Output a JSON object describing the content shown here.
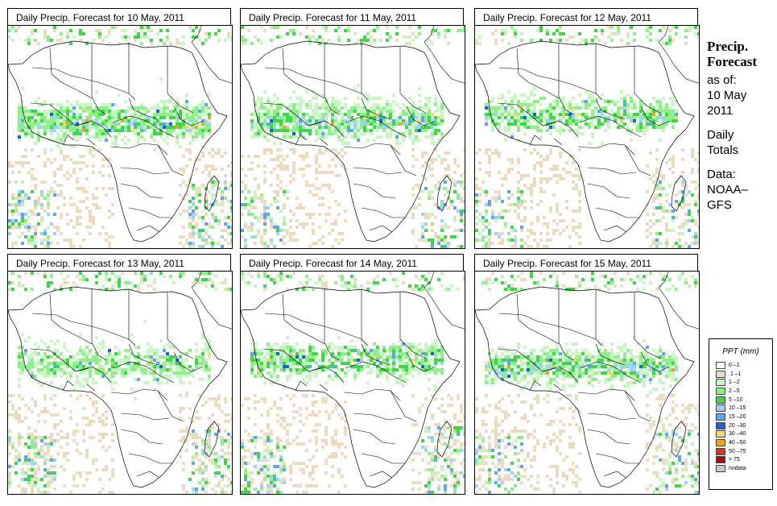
{
  "panels": [
    {
      "title": "Daily Precip. Forecast for  10 May, 2011",
      "day": 0
    },
    {
      "title": "Daily Precip. Forecast for  11 May, 2011",
      "day": 1
    },
    {
      "title": "Daily Precip. Forecast for  12 May, 2011",
      "day": 2
    },
    {
      "title": "Daily Precip. Forecast for  13 May, 2011",
      "day": 3
    },
    {
      "title": "Daily Precip. Forecast for  14 May, 2011",
      "day": 4
    },
    {
      "title": "Daily Precip. Forecast for  15 May, 2011",
      "day": 5
    }
  ],
  "side": {
    "title_line1": "Precip.",
    "title_line2": "Forecast",
    "as_of": "as of:",
    "date_line1": "10 May",
    "date_line2": "2011",
    "totals_line1": "Daily",
    "totals_line2": "Totals",
    "data_line1": "Data:",
    "data_line2": "NOAA–",
    "data_line3": "GFS"
  },
  "legend": {
    "title": "PPT (mm)",
    "items": [
      {
        "label": "0 –1",
        "color": "#ffffff"
      },
      {
        "label": ".1 –1",
        "color": "#ecdcbf"
      },
      {
        "label": "1 –2",
        "color": "#c9f7c3"
      },
      {
        "label": "2 –5",
        "color": "#8ff08a"
      },
      {
        "label": "5 –10",
        "color": "#3fd64a"
      },
      {
        "label": "10 –15",
        "color": "#9fd0f5"
      },
      {
        "label": "15 –20",
        "color": "#5aa6f0"
      },
      {
        "label": "20 –30",
        "color": "#1e5fe0"
      },
      {
        "label": "30 –40",
        "color": "#f5d96a"
      },
      {
        "label": "40 –50",
        "color": "#f4a11f"
      },
      {
        "label": "50 –75",
        "color": "#e5321a"
      },
      {
        "label": "> 75",
        "color": "#a81010"
      },
      {
        "label": "nodata",
        "color": "#c8c8c8"
      }
    ]
  }
}
